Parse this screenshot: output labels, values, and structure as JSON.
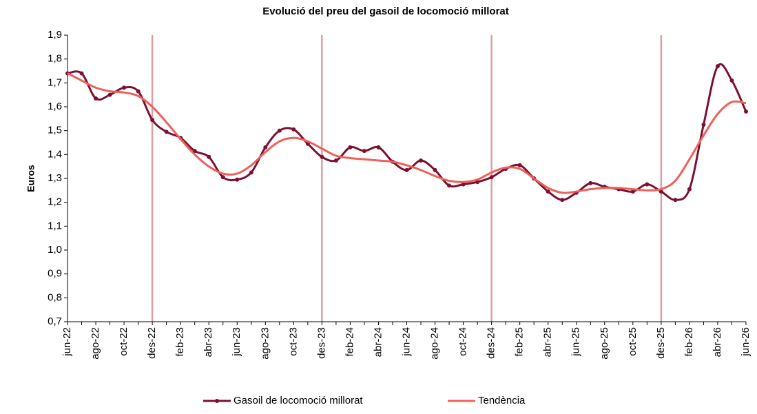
{
  "chart_data": {
    "type": "line",
    "title": "Evolució del preu del gasoil de locomoció millorat",
    "y_label": "Euros",
    "categories": [
      "jun-22",
      null,
      "ago-22",
      null,
      "oct-22",
      null,
      "des-22",
      null,
      "feb-23",
      null,
      "abr-23",
      null,
      "jun-23",
      null,
      "ago-23",
      null,
      "oct-23",
      null,
      "des-23",
      null,
      "feb-24",
      null,
      "abr-24",
      null,
      "jun-24",
      null,
      "ago-24",
      null,
      "oct-24",
      null,
      "des-24",
      null,
      "feb-25",
      null,
      "abr-25",
      null,
      "jun-25",
      null,
      "ago-25",
      null,
      "oct-25",
      null,
      "des-25",
      null,
      "feb-26",
      null,
      "abr-26",
      null,
      "jun-26"
    ],
    "series": [
      {
        "name": "Gasoil de locomoció millorat",
        "color": "#7b1030",
        "markers": true,
        "smooth": true,
        "values": [
          1.74,
          1.74,
          1.635,
          1.65,
          1.68,
          1.665,
          1.545,
          1.495,
          1.47,
          1.415,
          1.39,
          1.305,
          1.295,
          1.325,
          1.43,
          1.5,
          1.505,
          1.445,
          1.39,
          1.375,
          1.43,
          1.415,
          1.43,
          1.37,
          1.335,
          1.375,
          1.335,
          1.27,
          1.275,
          1.285,
          1.305,
          1.34,
          1.355,
          1.3,
          1.245,
          1.21,
          1.24,
          1.28,
          1.265,
          1.255,
          1.245,
          1.275,
          1.245,
          1.21,
          1.255,
          1.525,
          1.77,
          1.71,
          1.58
        ]
      },
      {
        "name": "Tendència",
        "color": "#f0605a",
        "markers": false,
        "smooth": true,
        "values": [
          1.74,
          1.71,
          1.68,
          1.665,
          1.66,
          1.645,
          1.6,
          1.535,
          1.465,
          1.4,
          1.35,
          1.32,
          1.32,
          1.355,
          1.41,
          1.455,
          1.47,
          1.455,
          1.425,
          1.395,
          1.385,
          1.38,
          1.375,
          1.37,
          1.355,
          1.335,
          1.31,
          1.29,
          1.285,
          1.295,
          1.325,
          1.345,
          1.34,
          1.3,
          1.26,
          1.24,
          1.245,
          1.255,
          1.26,
          1.26,
          1.255,
          1.25,
          1.255,
          1.29,
          1.38,
          1.48,
          1.57,
          1.62,
          1.615
        ]
      }
    ],
    "vlines": [
      6,
      18,
      30,
      42
    ],
    "vline_color": "#d9a0a0",
    "ylim": [
      0.7,
      1.9
    ],
    "yticks": [
      {
        "value": 0.7,
        "label": "0,7"
      },
      {
        "value": 0.8,
        "label": "0,8"
      },
      {
        "value": 0.9,
        "label": "0,9"
      },
      {
        "value": 1.0,
        "label": "1,0"
      },
      {
        "value": 1.1,
        "label": "1,1"
      },
      {
        "value": 1.2,
        "label": "1,2"
      },
      {
        "value": 1.3,
        "label": "1,3"
      },
      {
        "value": 1.4,
        "label": "1,4"
      },
      {
        "value": 1.5,
        "label": "1,5"
      },
      {
        "value": 1.6,
        "label": "1,6"
      },
      {
        "value": 1.7,
        "label": "1,7"
      },
      {
        "value": 1.8,
        "label": "1,8"
      },
      {
        "value": 1.9,
        "label": "1,9"
      }
    ],
    "grid": false,
    "legend": "bottom"
  }
}
